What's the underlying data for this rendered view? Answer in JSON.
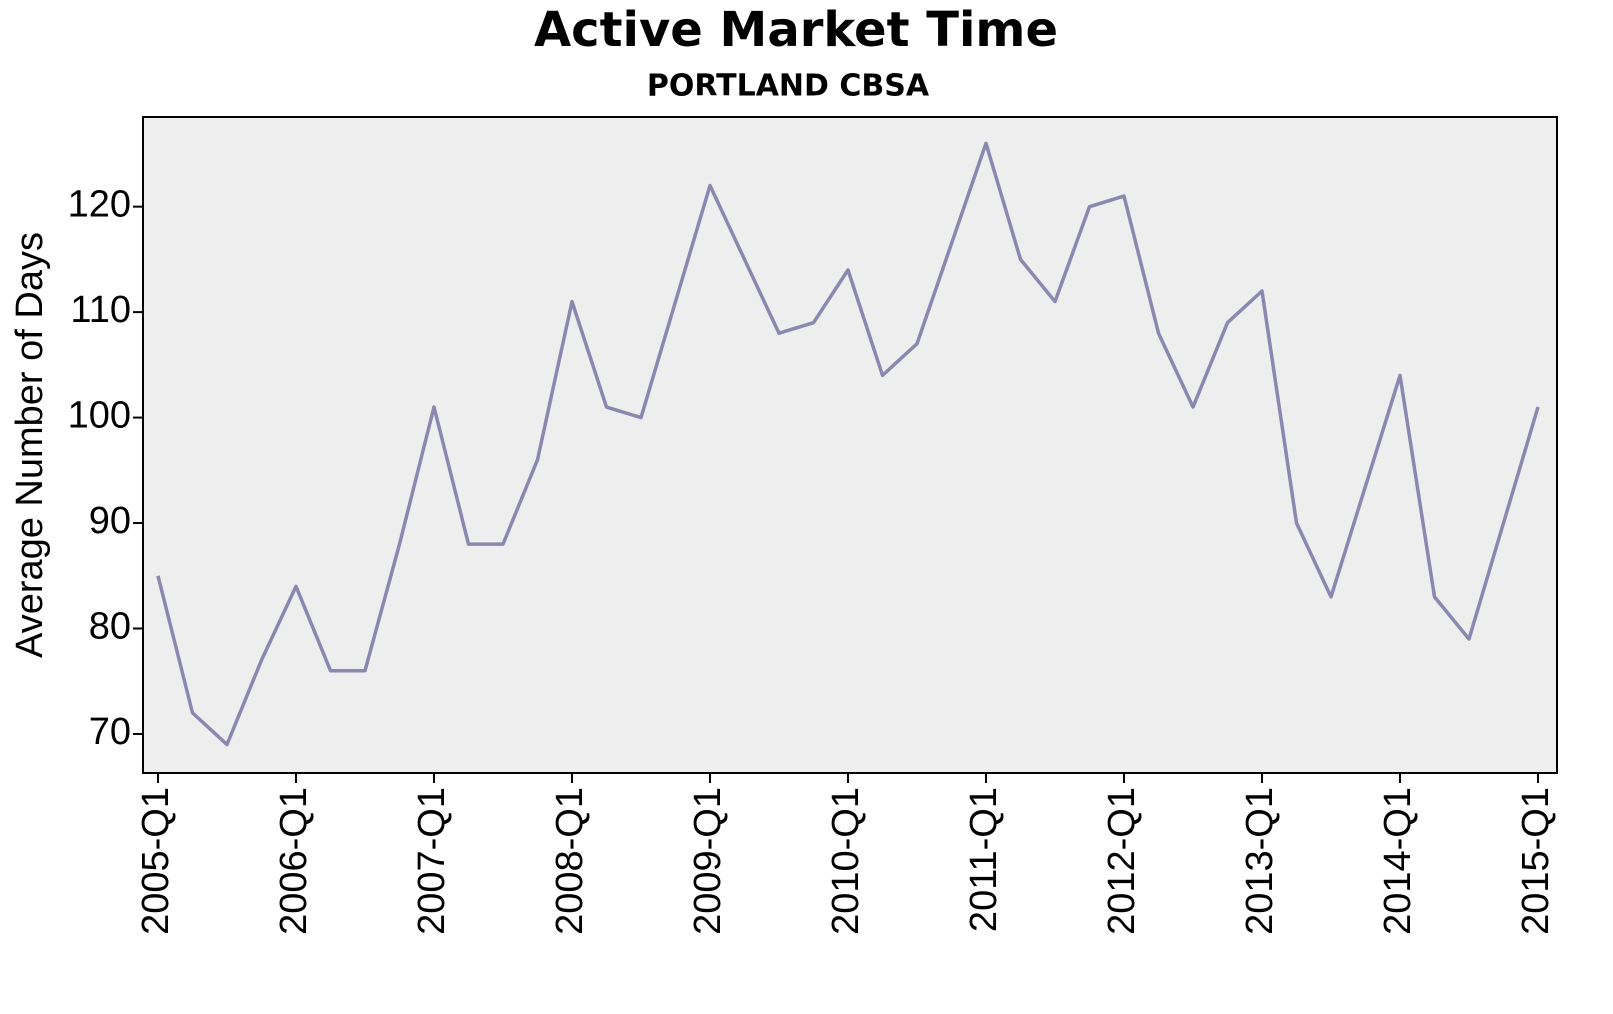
{
  "chart_data": {
    "type": "line",
    "title": "Active Market Time",
    "subtitle": "PORTLAND CBSA",
    "y_label": "Average Number of Days",
    "categories": [
      "2005-Q1",
      null,
      null,
      null,
      "2006-Q1",
      null,
      null,
      null,
      "2007-Q1",
      null,
      null,
      null,
      "2008-Q1",
      null,
      null,
      null,
      "2009-Q1",
      null,
      null,
      null,
      "2010-Q1",
      null,
      null,
      null,
      "2011-Q1",
      null,
      null,
      null,
      "2012-Q1",
      null,
      null,
      null,
      "2013-Q1",
      null,
      null,
      null,
      "2014-Q1",
      null,
      null,
      null,
      "2015-Q1"
    ],
    "values": [
      85,
      72,
      69,
      77,
      84,
      76,
      76,
      88,
      101,
      88,
      88,
      96,
      111,
      101,
      100,
      111,
      122,
      115,
      108,
      109,
      114,
      104,
      107,
      116.5,
      126,
      115,
      111,
      120,
      121,
      108,
      101,
      109,
      112,
      90,
      83,
      93.5,
      104,
      83,
      79,
      90,
      101
    ],
    "color": "#8a88b0",
    "ylim": [
      66.3,
      128.5
    ],
    "yticks": [
      70,
      80,
      90,
      100,
      110,
      120
    ],
    "grid": false
  }
}
